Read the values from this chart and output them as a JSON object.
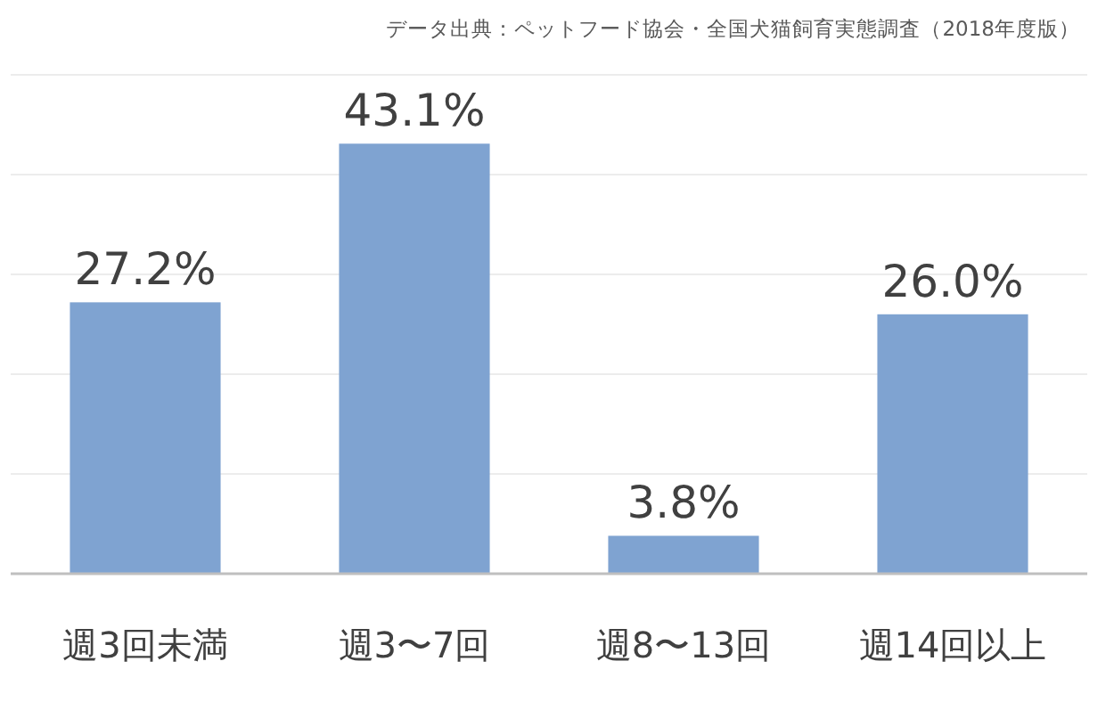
{
  "chart_data": {
    "type": "bar",
    "categories": [
      "週3回未満",
      "週3〜7回",
      "週8〜13回",
      "週14回以上"
    ],
    "series": [
      {
        "color": "#7fa3d1",
        "values": [
          27.2,
          43.1,
          3.8,
          26.0
        ],
        "value_labels": [
          "27.2%",
          "43.1%",
          "3.8%",
          "26.0%"
        ]
      }
    ],
    "grid": "y",
    "annotations": [
      "データ出典：ペットフード協会・全国犬猫飼育実態調査（2018年度版）"
    ]
  }
}
